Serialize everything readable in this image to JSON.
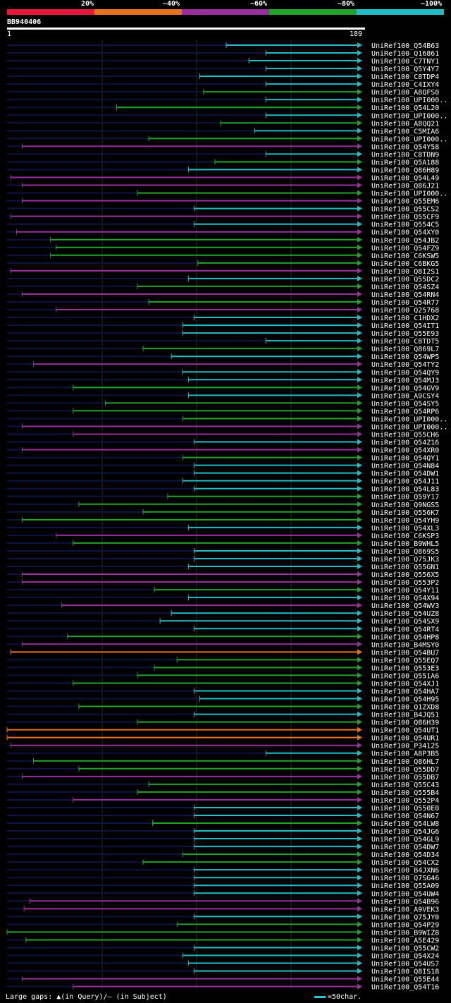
{
  "query": {
    "id": "BB940406",
    "start": "1",
    "end": "189",
    "length": 189
  },
  "legend": {
    "labels": [
      "20%",
      "~40%",
      "~60%",
      "~80%",
      "~100%"
    ],
    "colors": [
      "#e8173c",
      "#e8731c",
      "#9a2f9e",
      "#22a32a",
      "#21bcc8"
    ]
  },
  "footer": {
    "gaps_text": "Large gaps: ▲(in Query)/— (in Subject)",
    "scale_text": "=50char."
  },
  "chart_data": {
    "type": "alignment-overview",
    "x_range": [
      1,
      189
    ],
    "bands": [
      {
        "key": "p40",
        "color": "#e8731c"
      },
      {
        "key": "p60",
        "color": "#9a2f9e"
      },
      {
        "key": "p80",
        "color": "#22a32a"
      },
      {
        "key": "p100",
        "color": "#21bcc8"
      }
    ],
    "hits": [
      {
        "id": "UniRef100_Q54B63",
        "color": "#21bcc8",
        "start": 117,
        "end": 189
      },
      {
        "id": "UniRef100_Q16861",
        "color": "#21bcc8",
        "start": 138,
        "end": 189
      },
      {
        "id": "UniRef100_C7TNY1",
        "color": "#21bcc8",
        "start": 129,
        "end": 189
      },
      {
        "id": "UniRef100_Q5Y4Y7",
        "color": "#21bcc8",
        "start": 138,
        "end": 189
      },
      {
        "id": "UniRef100_C8TDP4",
        "color": "#21bcc8",
        "start": 103,
        "end": 189
      },
      {
        "id": "UniRef100_C4IXY4",
        "color": "#21bcc8",
        "start": 138,
        "end": 189
      },
      {
        "id": "UniRef100_A8QFS0",
        "color": "#22a32a",
        "start": 105,
        "end": 189
      },
      {
        "id": "UniRef100_UPI000..",
        "color": "#21bcc8",
        "start": 138,
        "end": 189
      },
      {
        "id": "UniRef100_Q54L20",
        "color": "#22a32a",
        "start": 59,
        "end": 189
      },
      {
        "id": "UniRef100_UPI000..",
        "color": "#21bcc8",
        "start": 138,
        "end": 189
      },
      {
        "id": "UniRef100_A8QQ21",
        "color": "#22a32a",
        "start": 114,
        "end": 189
      },
      {
        "id": "UniRef100_C5MIA6",
        "color": "#21bcc8",
        "start": 132,
        "end": 189
      },
      {
        "id": "UniRef100_UPI000..",
        "color": "#22a32a",
        "start": 76,
        "end": 189
      },
      {
        "id": "UniRef100_Q54Y58",
        "color": "#9a2f9e",
        "start": 9,
        "end": 189
      },
      {
        "id": "UniRef100_C8TDN9",
        "color": "#21bcc8",
        "start": 138,
        "end": 189
      },
      {
        "id": "UniRef100_Q5A188",
        "color": "#22a32a",
        "start": 111,
        "end": 189
      },
      {
        "id": "UniRef100_Q86H89",
        "color": "#21bcc8",
        "start": 97,
        "end": 189
      },
      {
        "id": "UniRef100_Q54L49",
        "color": "#9a2f9e",
        "start": 3,
        "end": 189
      },
      {
        "id": "UniRef100_Q86J21",
        "color": "#9a2f9e",
        "start": 9,
        "end": 189
      },
      {
        "id": "UniRef100_UPI000..",
        "color": "#22a32a",
        "start": 70,
        "end": 189
      },
      {
        "id": "UniRef100_Q55EM6",
        "color": "#9a2f9e",
        "start": 9,
        "end": 189
      },
      {
        "id": "UniRef100_Q55CS2",
        "color": "#21bcc8",
        "start": 100,
        "end": 189
      },
      {
        "id": "UniRef100_Q55CF9",
        "color": "#9a2f9e",
        "start": 3,
        "end": 189
      },
      {
        "id": "UniRef100_Q554C5",
        "color": "#21bcc8",
        "start": 100,
        "end": 189
      },
      {
        "id": "UniRef100_Q54XY0",
        "color": "#9a2f9e",
        "start": 6,
        "end": 189
      },
      {
        "id": "UniRef100_Q54JB2",
        "color": "#22a32a",
        "start": 24,
        "end": 189
      },
      {
        "id": "UniRef100_Q54FZ9",
        "color": "#22a32a",
        "start": 27,
        "end": 189
      },
      {
        "id": "UniRef100_C6KSW5",
        "color": "#22a32a",
        "start": 24,
        "end": 189
      },
      {
        "id": "UniRef100_C6BKG5",
        "color": "#22a32a",
        "start": 102,
        "end": 189
      },
      {
        "id": "UniRef100_Q8I2S1",
        "color": "#9a2f9e",
        "start": 3,
        "end": 189
      },
      {
        "id": "UniRef100_Q55DC2",
        "color": "#21bcc8",
        "start": 97,
        "end": 189
      },
      {
        "id": "UniRef100_Q54SZ4",
        "color": "#22a32a",
        "start": 70,
        "end": 189
      },
      {
        "id": "UniRef100_Q54RN4",
        "color": "#9a2f9e",
        "start": 9,
        "end": 189
      },
      {
        "id": "UniRef100_Q54R77",
        "color": "#22a32a",
        "start": 76,
        "end": 189
      },
      {
        "id": "UniRef100_Q25768",
        "color": "#9a2f9e",
        "start": 27,
        "end": 189
      },
      {
        "id": "UniRef100_C1HDX2",
        "color": "#21bcc8",
        "start": 100,
        "end": 189
      },
      {
        "id": "UniRef100_Q54IT1",
        "color": "#21bcc8",
        "start": 94,
        "end": 189
      },
      {
        "id": "UniRef100_Q55E93",
        "color": "#21bcc8",
        "start": 94,
        "end": 189
      },
      {
        "id": "UniRef100_C8TDT5",
        "color": "#21bcc8",
        "start": 138,
        "end": 189
      },
      {
        "id": "UniRef100_Q869L7",
        "color": "#22a32a",
        "start": 73,
        "end": 189
      },
      {
        "id": "UniRef100_Q54WP5",
        "color": "#21bcc8",
        "start": 88,
        "end": 189
      },
      {
        "id": "UniRef100_Q54TY2",
        "color": "#9a2f9e",
        "start": 15,
        "end": 189
      },
      {
        "id": "UniRef100_Q54QY9",
        "color": "#21bcc8",
        "start": 94,
        "end": 189
      },
      {
        "id": "UniRef100_Q54MJ3",
        "color": "#21bcc8",
        "start": 97,
        "end": 189
      },
      {
        "id": "UniRef100_Q54GV9",
        "color": "#22a32a",
        "start": 36,
        "end": 189
      },
      {
        "id": "UniRef100_A9CSY4",
        "color": "#21bcc8",
        "start": 97,
        "end": 189
      },
      {
        "id": "UniRef100_Q54SY5",
        "color": "#22a32a",
        "start": 53,
        "end": 189
      },
      {
        "id": "UniRef100_Q54RP6",
        "color": "#22a32a",
        "start": 36,
        "end": 189
      },
      {
        "id": "UniRef100_UPI000..",
        "color": "#22a32a",
        "start": 94,
        "end": 189
      },
      {
        "id": "UniRef100_UPI000..",
        "color": "#9a2f9e",
        "start": 9,
        "end": 189
      },
      {
        "id": "UniRef100_Q55CH6",
        "color": "#9a2f9e",
        "start": 36,
        "end": 189
      },
      {
        "id": "UniRef100_Q54Z16",
        "color": "#21bcc8",
        "start": 100,
        "end": 189
      },
      {
        "id": "UniRef100_Q54XR0",
        "color": "#9a2f9e",
        "start": 9,
        "end": 189
      },
      {
        "id": "UniRef100_Q54QY1",
        "color": "#22a32a",
        "start": 94,
        "end": 189
      },
      {
        "id": "UniRef100_Q54N84",
        "color": "#21bcc8",
        "start": 100,
        "end": 189
      },
      {
        "id": "UniRef100_Q54DW1",
        "color": "#21bcc8",
        "start": 100,
        "end": 189
      },
      {
        "id": "UniRef100_Q54J11",
        "color": "#21bcc8",
        "start": 94,
        "end": 189
      },
      {
        "id": "UniRef100_Q54L83",
        "color": "#21bcc8",
        "start": 100,
        "end": 189
      },
      {
        "id": "UniRef100_Q59Y17",
        "color": "#22a32a",
        "start": 86,
        "end": 189
      },
      {
        "id": "UniRef100_Q9NGS5",
        "color": "#22a32a",
        "start": 39,
        "end": 189
      },
      {
        "id": "UniRef100_Q556K7",
        "color": "#22a32a",
        "start": 73,
        "end": 189
      },
      {
        "id": "UniRef100_Q54YH9",
        "color": "#22a32a",
        "start": 9,
        "end": 189
      },
      {
        "id": "UniRef100_Q54XL3",
        "color": "#21bcc8",
        "start": 97,
        "end": 189
      },
      {
        "id": "UniRef100_C6KSP3",
        "color": "#9a2f9e",
        "start": 27,
        "end": 189
      },
      {
        "id": "UniRef100_B9WHL5",
        "color": "#22a32a",
        "start": 36,
        "end": 189
      },
      {
        "id": "UniRef100_Q869S5",
        "color": "#21bcc8",
        "start": 100,
        "end": 189
      },
      {
        "id": "UniRef100_Q75JK3",
        "color": "#21bcc8",
        "start": 100,
        "end": 189
      },
      {
        "id": "UniRef100_Q55GN1",
        "color": "#21bcc8",
        "start": 97,
        "end": 189
      },
      {
        "id": "UniRef100_Q556X5",
        "color": "#9a2f9e",
        "start": 9,
        "end": 189
      },
      {
        "id": "UniRef100_Q553P2",
        "color": "#9a2f9e",
        "start": 9,
        "end": 189
      },
      {
        "id": "UniRef100_Q54Y11",
        "color": "#22a32a",
        "start": 79,
        "end": 189
      },
      {
        "id": "UniRef100_Q54X94",
        "color": "#21bcc8",
        "start": 97,
        "end": 189
      },
      {
        "id": "UniRef100_Q54WV3",
        "color": "#9a2f9e",
        "start": 30,
        "end": 189
      },
      {
        "id": "UniRef100_Q54UZ8",
        "color": "#21bcc8",
        "start": 88,
        "end": 189
      },
      {
        "id": "UniRef100_Q54SX9",
        "color": "#21bcc8",
        "start": 82,
        "end": 189
      },
      {
        "id": "UniRef100_Q54RT4",
        "color": "#21bcc8",
        "start": 100,
        "end": 189
      },
      {
        "id": "UniRef100_Q54HP8",
        "color": "#22a32a",
        "start": 33,
        "end": 189
      },
      {
        "id": "UniRef100_B4MSY0",
        "color": "#9a2f9e",
        "start": 9,
        "end": 189
      },
      {
        "id": "UniRef100_Q54BU7",
        "color": "#e8731c",
        "start": 3,
        "end": 189
      },
      {
        "id": "UniRef100_Q55EQ7",
        "color": "#22a32a",
        "start": 91,
        "end": 189
      },
      {
        "id": "UniRef100_Q553E3",
        "color": "#22a32a",
        "start": 79,
        "end": 189
      },
      {
        "id": "UniRef100_Q551A6",
        "color": "#22a32a",
        "start": 70,
        "end": 189
      },
      {
        "id": "UniRef100_Q54XJ1",
        "color": "#22a32a",
        "start": 36,
        "end": 189
      },
      {
        "id": "UniRef100_Q54HA7",
        "color": "#21bcc8",
        "start": 100,
        "end": 189
      },
      {
        "id": "UniRef100_Q54H95",
        "color": "#21bcc8",
        "start": 103,
        "end": 189
      },
      {
        "id": "UniRef100_Q1ZXD8",
        "color": "#22a32a",
        "start": 39,
        "end": 189
      },
      {
        "id": "UniRef100_B4JQ51",
        "color": "#21bcc8",
        "start": 100,
        "end": 189
      },
      {
        "id": "UniRef100_Q86H39",
        "color": "#22a32a",
        "start": 70,
        "end": 189
      },
      {
        "id": "UniRef100_Q54UT1",
        "color": "#e8731c",
        "start": 1,
        "end": 189
      },
      {
        "id": "UniRef100_Q54UR1",
        "color": "#e8731c",
        "start": 1,
        "end": 189
      },
      {
        "id": "UniRef100_P34125",
        "color": "#9a2f9e",
        "start": 3,
        "end": 189
      },
      {
        "id": "UniRef100_A8P3B5",
        "color": "#21bcc8",
        "start": 138,
        "end": 189
      },
      {
        "id": "UniRef100_Q86HL7",
        "color": "#22a32a",
        "start": 15,
        "end": 189
      },
      {
        "id": "UniRef100_Q55DD7",
        "color": "#22a32a",
        "start": 39,
        "end": 189
      },
      {
        "id": "UniRef100_Q55DB7",
        "color": "#9a2f9e",
        "start": 9,
        "end": 189
      },
      {
        "id": "UniRef100_Q55C43",
        "color": "#22a32a",
        "start": 76,
        "end": 189
      },
      {
        "id": "UniRef100_Q555B4",
        "color": "#22a32a",
        "start": 70,
        "end": 189
      },
      {
        "id": "UniRef100_Q552P4",
        "color": "#9a2f9e",
        "start": 36,
        "end": 189
      },
      {
        "id": "UniRef100_Q550E0",
        "color": "#21bcc8",
        "start": 100,
        "end": 189
      },
      {
        "id": "UniRef100_Q54N67",
        "color": "#21bcc8",
        "start": 100,
        "end": 189
      },
      {
        "id": "UniRef100_Q54LW8",
        "color": "#22a32a",
        "start": 78,
        "end": 189
      },
      {
        "id": "UniRef100_Q54JG6",
        "color": "#21bcc8",
        "start": 100,
        "end": 189
      },
      {
        "id": "UniRef100_Q54GL9",
        "color": "#21bcc8",
        "start": 100,
        "end": 189
      },
      {
        "id": "UniRef100_Q54DW7",
        "color": "#21bcc8",
        "start": 100,
        "end": 189
      },
      {
        "id": "UniRef100_Q54D34",
        "color": "#22a32a",
        "start": 94,
        "end": 189
      },
      {
        "id": "UniRef100_Q54CX2",
        "color": "#22a32a",
        "start": 73,
        "end": 189
      },
      {
        "id": "UniRef100_B4JXN6",
        "color": "#21bcc8",
        "start": 100,
        "end": 189
      },
      {
        "id": "UniRef100_Q7SG46",
        "color": "#21bcc8",
        "start": 100,
        "end": 189
      },
      {
        "id": "UniRef100_Q55A09",
        "color": "#21bcc8",
        "start": 100,
        "end": 189
      },
      {
        "id": "UniRef100_Q54UW4",
        "color": "#21bcc8",
        "start": 100,
        "end": 189
      },
      {
        "id": "UniRef100_Q54B96",
        "color": "#9a2f9e",
        "start": 13,
        "end": 189
      },
      {
        "id": "UniRef100_A9VEK3",
        "color": "#9a2f9e",
        "start": 10,
        "end": 189
      },
      {
        "id": "UniRef100_Q75JY0",
        "color": "#21bcc8",
        "start": 100,
        "end": 189
      },
      {
        "id": "UniRef100_Q54P29",
        "color": "#22a32a",
        "start": 91,
        "end": 189
      },
      {
        "id": "UniRef100_B9WIZ8",
        "color": "#22a32a",
        "start": 1,
        "end": 189
      },
      {
        "id": "UniRef100_A5E429",
        "color": "#22a32a",
        "start": 11,
        "end": 189
      },
      {
        "id": "UniRef100_Q55CW2",
        "color": "#21bcc8",
        "start": 100,
        "end": 189
      },
      {
        "id": "UniRef100_Q54X24",
        "color": "#21bcc8",
        "start": 94,
        "end": 189
      },
      {
        "id": "UniRef100_Q54US7",
        "color": "#21bcc8",
        "start": 97,
        "end": 189
      },
      {
        "id": "UniRef100_Q8IS18",
        "color": "#21bcc8",
        "start": 100,
        "end": 189
      },
      {
        "id": "UniRef100_Q55E44",
        "color": "#9a2f9e",
        "start": 9,
        "end": 189
      },
      {
        "id": "UniRef100_Q54T16",
        "color": "#9a2f9e",
        "start": 36,
        "end": 189
      }
    ]
  }
}
